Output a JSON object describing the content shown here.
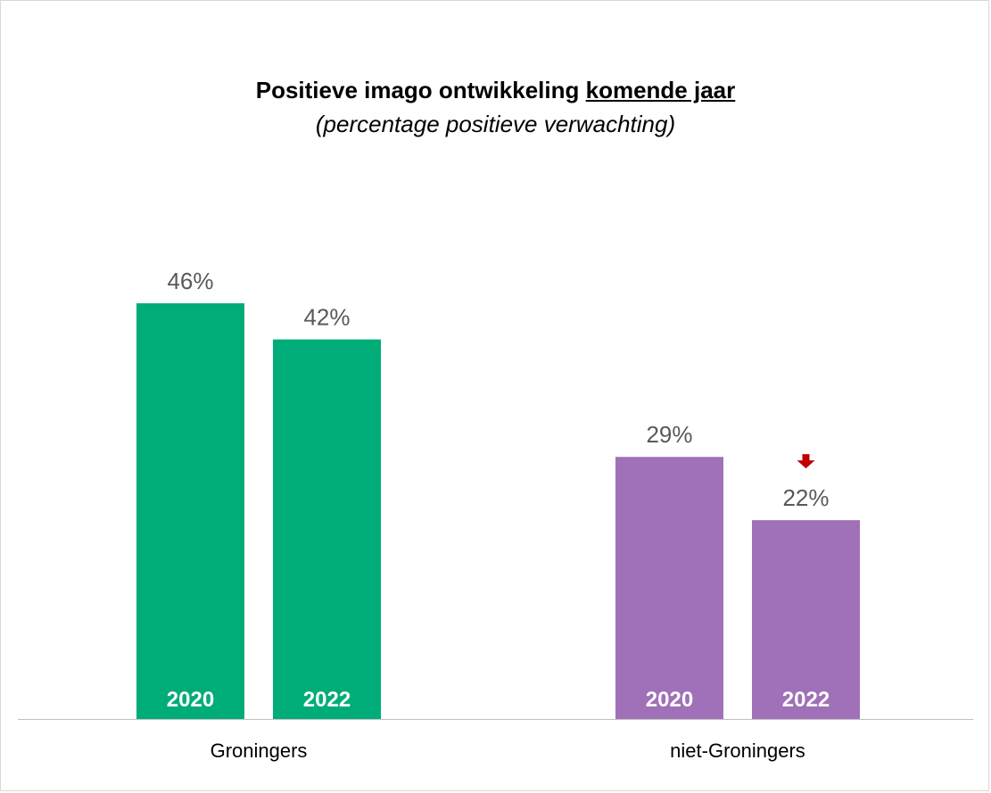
{
  "chart_data": {
    "type": "bar",
    "title": "Positieve imago ontwikkeling",
    "title_underlined": "komende jaar",
    "subtitle": "(percentage positieve verwachting)",
    "categories": [
      "Groningers",
      "niet-Groningers"
    ],
    "ylim": [
      0,
      52
    ],
    "grid": false,
    "legend": "none",
    "bars": [
      {
        "category": "Groningers",
        "year": "2020",
        "value": 46,
        "label": "46%",
        "color": "#00ac78",
        "marker": ""
      },
      {
        "category": "Groningers",
        "year": "2022",
        "value": 42,
        "label": "42%",
        "color": "#00ac78",
        "marker": ""
      },
      {
        "category": "niet-Groningers",
        "year": "2020",
        "value": 29,
        "label": "29%",
        "color": "#a070b8",
        "marker": ""
      },
      {
        "category": "niet-Groningers",
        "year": "2022",
        "value": 22,
        "label": "22%",
        "color": "#a070b8",
        "marker": "significant-decrease-arrow"
      }
    ],
    "decrease_marker_color": "#c00000"
  }
}
